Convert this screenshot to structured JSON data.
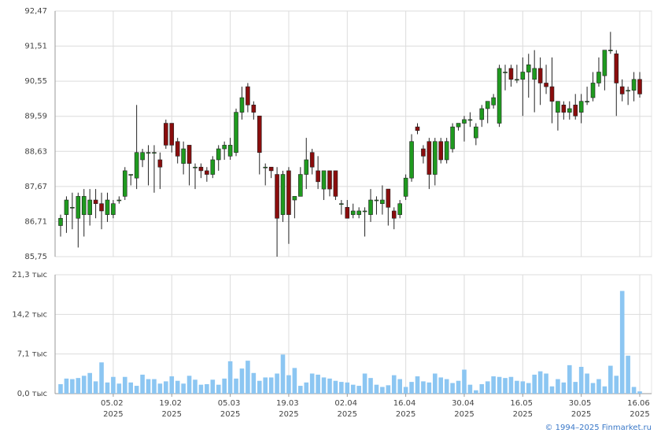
{
  "chart_data": {
    "type": "candlestick",
    "categories": [
      null,
      null,
      null,
      null,
      null,
      null,
      null,
      null,
      null,
      "05.02 2025",
      null,
      null,
      null,
      null,
      null,
      null,
      null,
      null,
      null,
      "19.02 2025",
      null,
      null,
      null,
      null,
      null,
      null,
      null,
      null,
      null,
      "05.03 2025",
      null,
      null,
      null,
      null,
      null,
      null,
      null,
      null,
      null,
      "19.03 2025",
      null,
      null,
      null,
      null,
      null,
      null,
      null,
      null,
      null,
      "02.04 2025",
      null,
      null,
      null,
      null,
      null,
      null,
      null,
      null,
      null,
      "16.04 2025",
      null,
      null,
      null,
      null,
      null,
      null,
      null,
      null,
      null,
      "30.04 2025",
      null,
      null,
      null,
      null,
      null,
      null,
      null,
      null,
      null,
      "16.05 2025",
      null,
      null,
      null,
      null,
      null,
      null,
      null,
      null,
      null,
      "30.05 2025",
      null,
      null,
      null,
      null,
      null,
      null,
      null,
      null,
      null,
      "16.06 2025"
    ],
    "open": [
      86.6,
      86.9,
      87.1,
      86.8,
      86.9,
      86.9,
      87.3,
      87.2,
      86.9,
      86.9,
      87.3,
      87.4,
      88.0,
      87.9,
      88.4,
      88.6,
      88.6,
      88.4,
      89.4,
      89.4,
      88.9,
      88.3,
      88.8,
      88.2,
      88.2,
      88.1,
      88.0,
      88.4,
      88.7,
      88.5,
      88.6,
      89.7,
      90.4,
      89.9,
      89.6,
      88.2,
      88.2,
      88.0,
      86.9,
      88.1,
      87.3,
      87.4,
      88.0,
      88.6,
      88.1,
      87.6,
      88.1,
      88.1,
      87.2,
      87.1,
      86.9,
      86.9,
      87.0,
      86.9,
      87.3,
      87.2,
      87.6,
      87.0,
      86.9,
      87.4,
      87.9,
      89.3,
      88.7,
      88.9,
      88.0,
      88.9,
      88.4,
      88.7,
      89.3,
      89.4,
      89.5,
      89.0,
      89.5,
      89.8,
      89.9,
      89.4,
      90.8,
      90.9,
      90.6,
      90.6,
      90.8,
      90.6,
      90.9,
      90.5,
      90.4,
      89.7,
      89.9,
      89.7,
      89.9,
      89.7,
      90.0,
      90.1,
      90.5,
      90.7,
      91.4,
      91.3,
      90.4,
      90.3,
      90.3,
      90.6
    ],
    "high": [
      86.9,
      87.4,
      87.5,
      87.5,
      87.6,
      87.6,
      87.6,
      87.5,
      87.5,
      87.3,
      87.4,
      88.2,
      88.0,
      89.9,
      88.7,
      88.8,
      88.8,
      88.6,
      89.5,
      89.4,
      89.0,
      88.9,
      88.8,
      88.3,
      88.3,
      88.2,
      88.5,
      88.8,
      88.9,
      89.0,
      89.8,
      90.4,
      90.5,
      90.0,
      89.6,
      88.3,
      88.2,
      88.2,
      88.1,
      88.2,
      87.4,
      88.2,
      89.0,
      88.7,
      88.5,
      88.1,
      88.1,
      88.1,
      87.3,
      87.3,
      87.2,
      87.1,
      87.1,
      87.6,
      87.4,
      87.7,
      87.6,
      87.1,
      87.3,
      88.0,
      89.1,
      89.4,
      88.8,
      89.0,
      89.0,
      89.0,
      89.0,
      89.4,
      89.4,
      89.6,
      89.7,
      89.4,
      89.9,
      90.0,
      90.2,
      91.0,
      91.0,
      91.0,
      91.0,
      91.2,
      91.3,
      91.4,
      91.2,
      91.0,
      91.2,
      90.0,
      90.0,
      90.0,
      90.2,
      90.2,
      90.4,
      90.8,
      91.2,
      91.4,
      91.9,
      91.4,
      90.6,
      90.4,
      90.8,
      90.8
    ],
    "low": [
      86.3,
      86.4,
      86.5,
      86.0,
      86.3,
      86.6,
      86.8,
      86.5,
      86.7,
      86.8,
      87.2,
      87.3,
      87.7,
      87.6,
      88.2,
      87.7,
      87.5,
      87.6,
      88.7,
      88.6,
      88.3,
      88.0,
      87.7,
      87.6,
      87.9,
      87.8,
      87.9,
      88.1,
      88.4,
      88.4,
      88.5,
      89.5,
      89.7,
      89.5,
      88.0,
      87.7,
      87.9,
      85.75,
      86.7,
      86.1,
      86.8,
      87.4,
      87.6,
      88.0,
      87.6,
      87.3,
      87.4,
      87.3,
      86.9,
      86.8,
      86.8,
      86.8,
      86.3,
      86.7,
      86.9,
      86.9,
      86.6,
      86.5,
      86.8,
      87.3,
      87.8,
      89.1,
      88.3,
      87.6,
      87.7,
      88.3,
      88.3,
      88.6,
      89.2,
      88.9,
      89.3,
      88.8,
      89.3,
      89.4,
      89.8,
      89.3,
      90.3,
      90.4,
      90.5,
      89.6,
      90.1,
      89.7,
      89.9,
      90.2,
      89.4,
      89.2,
      89.5,
      89.5,
      89.5,
      89.4,
      89.9,
      90.0,
      90.4,
      90.3,
      91.3,
      89.6,
      90.0,
      89.9,
      90.0,
      90.1
    ],
    "close": [
      86.8,
      87.3,
      87.1,
      87.4,
      87.4,
      87.3,
      87.2,
      87.0,
      87.3,
      87.2,
      87.3,
      88.1,
      88.0,
      88.6,
      88.6,
      88.6,
      88.6,
      88.2,
      88.8,
      88.8,
      88.5,
      88.7,
      88.3,
      88.2,
      88.1,
      88.0,
      88.4,
      88.7,
      88.8,
      88.8,
      89.7,
      90.1,
      89.9,
      89.7,
      88.6,
      88.2,
      88.1,
      86.8,
      88.0,
      86.9,
      87.4,
      88.0,
      88.4,
      88.2,
      87.8,
      88.1,
      87.6,
      87.4,
      87.2,
      86.8,
      87.0,
      87.0,
      87.0,
      87.3,
      87.3,
      87.3,
      87.1,
      86.8,
      87.2,
      87.9,
      88.9,
      89.2,
      88.5,
      88.0,
      88.9,
      88.4,
      88.9,
      89.3,
      89.4,
      89.5,
      89.5,
      89.3,
      89.8,
      90.0,
      90.1,
      90.9,
      90.8,
      90.6,
      90.6,
      90.8,
      91.0,
      90.9,
      90.5,
      90.4,
      90.0,
      90.0,
      89.7,
      89.8,
      89.6,
      90.0,
      90.0,
      90.5,
      90.8,
      91.4,
      91.4,
      90.5,
      90.2,
      90.3,
      90.6,
      90.2
    ],
    "volume": [
      1.7,
      2.7,
      2.6,
      2.8,
      3.2,
      3.7,
      2.2,
      5.6,
      2.0,
      3.0,
      1.8,
      3.0,
      2.0,
      1.4,
      3.4,
      2.6,
      2.6,
      1.8,
      2.2,
      3.1,
      2.3,
      1.8,
      3.2,
      2.5,
      1.6,
      1.7,
      2.5,
      1.6,
      2.7,
      5.8,
      2.7,
      4.5,
      5.9,
      3.7,
      2.3,
      2.9,
      2.9,
      3.6,
      7.0,
      3.3,
      4.6,
      1.4,
      2.0,
      3.6,
      3.4,
      2.9,
      2.7,
      2.3,
      2.1,
      2.0,
      1.6,
      1.4,
      3.6,
      2.8,
      1.6,
      1.2,
      1.5,
      3.3,
      2.6,
      1.2,
      2.1,
      3.1,
      2.2,
      2.0,
      3.6,
      2.9,
      2.6,
      1.9,
      2.3,
      4.3,
      1.6,
      0.6,
      1.7,
      2.2,
      3.1,
      3.0,
      2.8,
      3.0,
      2.3,
      2.2,
      1.9,
      3.4,
      4.0,
      3.6,
      1.3,
      2.6,
      2.0,
      5.1,
      2.1,
      4.8,
      3.6,
      1.9,
      2.6,
      1.3,
      5.0,
      3.2,
      18.4,
      6.8,
      1.2,
      0.4
    ],
    "up_color": "#1f9a1f",
    "down_color": "#8a0d0d",
    "volume_color": "#8cc6f2",
    "ylim": [
      85.75,
      92.47
    ],
    "yticks": [
      {
        "value": 85.75,
        "label": "85,75"
      },
      {
        "value": 86.71,
        "label": "86,71"
      },
      {
        "value": 87.67,
        "label": "87,67"
      },
      {
        "value": 88.63,
        "label": "88,63"
      },
      {
        "value": 89.59,
        "label": "89,59"
      },
      {
        "value": 90.55,
        "label": "90,55"
      },
      {
        "value": 91.51,
        "label": "91,51"
      },
      {
        "value": 92.47,
        "label": "92,47"
      }
    ],
    "y2lim": [
      0,
      21.3
    ],
    "y2ticks": [
      {
        "value": 0,
        "label": "0,0 тыс"
      },
      {
        "value": 7.1,
        "label": "7,1 тыс"
      },
      {
        "value": 14.2,
        "label": "14,2 тыс"
      },
      {
        "value": 21.3,
        "label": "21,3 тыс"
      }
    ],
    "grid": true,
    "copyright": "© 1994–2025 Finmarket.ru"
  }
}
